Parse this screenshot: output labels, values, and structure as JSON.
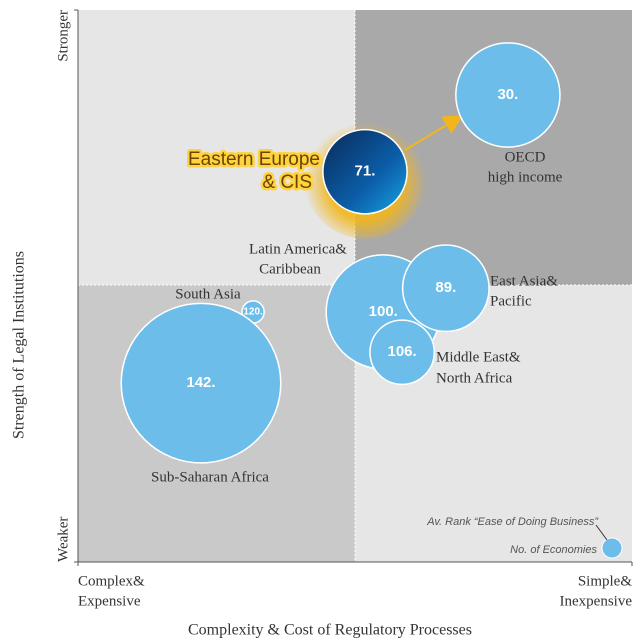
{
  "chart_data": {
    "type": "bubble",
    "x_label": "Complexity & Cost of Regulatory Processes",
    "y_label": "Strength of Legal Institutions",
    "x_end_labels": [
      [
        "Complex&",
        "Expensive"
      ],
      [
        "Simple&",
        "Inexpensive"
      ]
    ],
    "y_end_labels": [
      "Weaker",
      "Stronger"
    ],
    "xlim": [
      0,
      100
    ],
    "ylim": [
      0,
      100
    ],
    "color": "#6cbde9",
    "legend": [
      "Av. Rank “Ease of Doing Business”",
      "No. of Economies"
    ],
    "points": [
      {
        "name": [
          "OECD",
          "high income"
        ],
        "x": 77.6,
        "y": 84.6,
        "size": 9.4,
        "value": 30,
        "value_label": "30."
      },
      {
        "name": [
          "Eastern Europe",
          "& CIS"
        ],
        "x": 51.8,
        "y": 70.7,
        "size": 7.6,
        "value": 71,
        "value_label": "71.",
        "highlight": true
      },
      {
        "name": [
          "Latin America&",
          "Caribbean"
        ],
        "x": 55.1,
        "y": 45.3,
        "size": 10.3,
        "value": 100,
        "value_label": "100."
      },
      {
        "name": [
          "East Asia&",
          "Pacific"
        ],
        "x": 66.4,
        "y": 49.6,
        "size": 7.8,
        "value": 89,
        "value_label": "89."
      },
      {
        "name": [
          "Middle East&",
          "North Africa"
        ],
        "x": 58.5,
        "y": 38.0,
        "size": 5.8,
        "value": 106,
        "value_label": "106."
      },
      {
        "name": [
          "South Asia"
        ],
        "x": 31.6,
        "y": 45.3,
        "size": 2.0,
        "value": 120,
        "value_label": "120."
      },
      {
        "name": [
          "Sub-Saharan Africa"
        ],
        "x": 22.2,
        "y": 32.4,
        "size": 14.4,
        "value": 142,
        "value_label": "142."
      }
    ]
  }
}
